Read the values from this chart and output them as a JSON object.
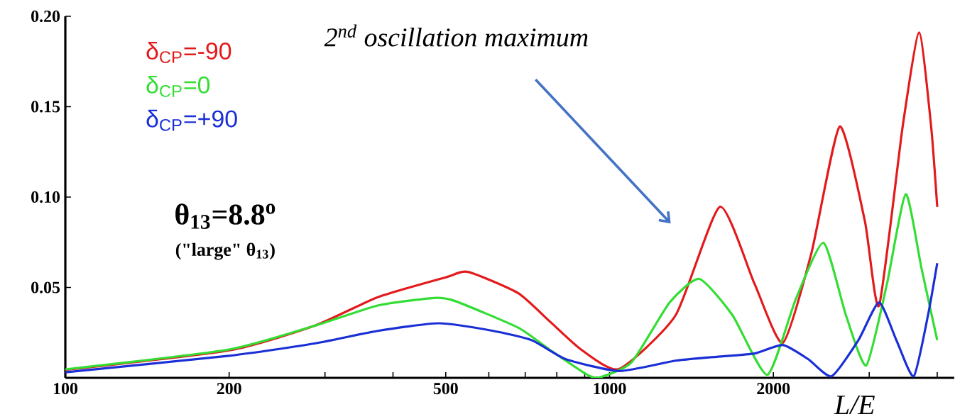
{
  "chart_data": {
    "type": "line",
    "xlabel": "L/E",
    "log": "x",
    "legend": "top left",
    "line_style": "solid",
    "xlim": [
      100,
      4300
    ],
    "ylim": [
      0,
      0.2
    ],
    "xticks": [
      100,
      200,
      {
        "value": 300,
        "label": null
      },
      {
        "value": 400,
        "label": null
      },
      500,
      {
        "value": 600,
        "label": null
      },
      {
        "value": 700,
        "label": null
      },
      {
        "value": 800,
        "label": null
      },
      {
        "value": 900,
        "label": null
      },
      1000,
      2000,
      {
        "value": 3000,
        "label": null
      },
      {
        "value": 4000,
        "label": null
      }
    ],
    "yticks": [
      0.05,
      {
        "value": 0.1,
        "label": "0.10"
      },
      {
        "value": 0.15,
        "label": "0.15"
      },
      {
        "value": 0.2,
        "label": "0.20"
      }
    ],
    "annotations": [
      "2$^{nd}$ oscillation maximum",
      "θ$_{13}$=8.8$^{o}$",
      "(\"large\" θ$_{13}$)"
    ],
    "series": [
      {
        "name": "δ$_{CP}$=-90",
        "color": "#e31a1c",
        "x": [
          100,
          200,
          287,
          375,
          500,
          550,
          679,
          776,
          887,
          1041,
          1323,
          1595,
          1847,
          2081,
          2349,
          2648,
          2945,
          3128,
          3456,
          3706,
          3899,
          4000
        ],
        "values": [
          0.0044,
          0.0152,
          0.0288,
          0.0446,
          0.0556,
          0.0586,
          0.0469,
          0.0313,
          0.0156,
          0.0049,
          0.0347,
          0.0946,
          0.052,
          0.0194,
          0.069,
          0.139,
          0.0868,
          0.04,
          0.139,
          0.191,
          0.139,
          0.0946
        ]
      },
      {
        "name": "δ$_{CP}$=0",
        "color": "#33dd33",
        "x": [
          100,
          200,
          287,
          375,
          476,
          520,
          679,
          776,
          910,
          960,
          1098,
          1289,
          1462,
          1682,
          1950,
          2198,
          2472,
          2718,
          2963,
          3234,
          3501,
          3742,
          4000
        ],
        "values": [
          0.0047,
          0.0157,
          0.0288,
          0.04,
          0.0442,
          0.0425,
          0.0278,
          0.0156,
          0.0017,
          0.0003,
          0.0087,
          0.0417,
          0.0547,
          0.0347,
          0.0017,
          0.0434,
          0.0747,
          0.0347,
          0.0069,
          0.052,
          0.1016,
          0.0608,
          0.0208
        ]
      },
      {
        "name": "δ$_{CP}$=+90",
        "color": "#1a2fd6",
        "x": [
          100,
          200,
          287,
          375,
          486,
          611,
          720,
          830,
          1041,
          1323,
          1595,
          1847,
          2081,
          2316,
          2558,
          2865,
          3128,
          3366,
          3622,
          3848,
          4000
        ],
        "values": [
          0.0031,
          0.0122,
          0.019,
          0.026,
          0.0302,
          0.026,
          0.0208,
          0.0104,
          0.0038,
          0.0095,
          0.0118,
          0.0135,
          0.0182,
          0.0104,
          0.0009,
          0.0208,
          0.0417,
          0.0208,
          0.0009,
          0.0347,
          0.0634
        ]
      }
    ]
  }
}
